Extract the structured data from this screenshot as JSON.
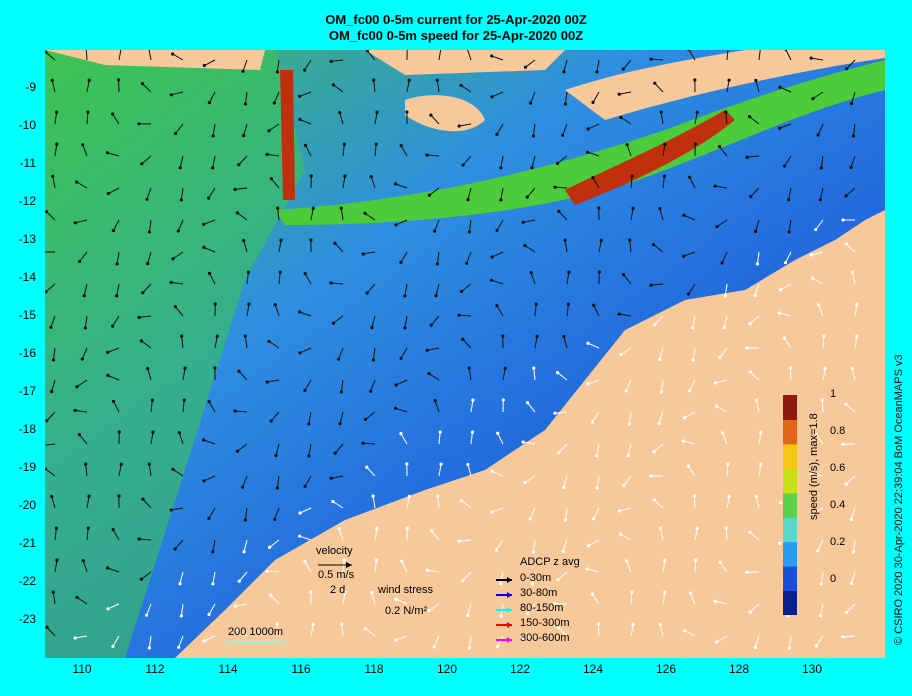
{
  "title_line1": "OM_fc00 0-5m current for 25-Apr-2020 00Z",
  "title_line2": "OM_fc00 0-5m speed for 25-Apr-2020 00Z",
  "lat_ticks": [
    "-9",
    "-10",
    "-11",
    "-12",
    "-13",
    "-14",
    "-15",
    "-16",
    "-17",
    "-18",
    "-19",
    "-20",
    "-21",
    "-22",
    "-23"
  ],
  "lon_ticks": [
    "110",
    "112",
    "114",
    "116",
    "118",
    "120",
    "122",
    "124",
    "126",
    "128",
    "130"
  ],
  "colorbar": {
    "label": "speed (m/s), max=1.8",
    "ticks": [
      "1",
      "0.8",
      "0.6",
      "0.4",
      "0.2",
      "0"
    ],
    "range": [
      0,
      1
    ],
    "colors": [
      "#0a1f8a",
      "#1a4fd8",
      "#2a9cf0",
      "#5ad7c8",
      "#5fd04a",
      "#c8e01a",
      "#f5c518",
      "#e0661a",
      "#8c1a0e"
    ]
  },
  "velocity_legend": {
    "title": "velocity",
    "speed": "0.5 m/s",
    "duration": "2 d"
  },
  "wind_legend": {
    "title": "wind stress",
    "value": "0.2 N/m²"
  },
  "depth_legend": {
    "text": "200  1000m"
  },
  "adcp": {
    "title": "ADCP z avg",
    "items": [
      {
        "label": "0-30m",
        "color": "#000000"
      },
      {
        "label": "30-80m",
        "color": "#0000ff"
      },
      {
        "label": "80-150m",
        "color": "#00ffff"
      },
      {
        "label": "150-300m",
        "color": "#ff0000"
      },
      {
        "label": "300-600m",
        "color": "#ff00ff"
      }
    ]
  },
  "credit": "© CSIRO 2020   30-Apr-2020 22:39:04 BoM OceanMAPS v3",
  "land_color": "#f7c89a",
  "ocean_colors": {
    "slow": "#1f63e0",
    "mid": "#3fb0c8",
    "fast": "#4ccc3a",
    "jet": "#c0300f"
  }
}
